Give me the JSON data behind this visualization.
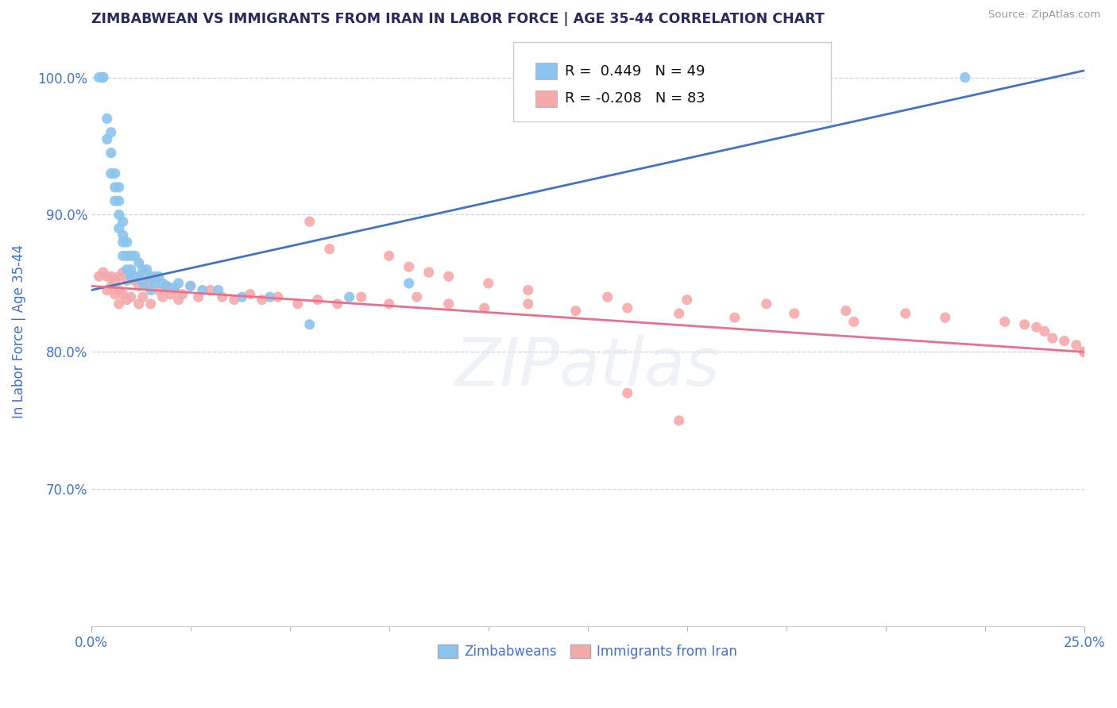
{
  "title": "ZIMBABWEAN VS IMMIGRANTS FROM IRAN IN LABOR FORCE | AGE 35-44 CORRELATION CHART",
  "source": "Source: ZipAtlas.com",
  "ylabel": "In Labor Force | Age 35-44",
  "x_min": 0.0,
  "x_max": 0.25,
  "y_min": 0.6,
  "y_max": 1.03,
  "y_ticks": [
    0.7,
    0.8,
    0.9,
    1.0
  ],
  "y_tick_labels": [
    "70.0%",
    "80.0%",
    "90.0%",
    "100.0%"
  ],
  "zimbabwean_R": 0.449,
  "zimbabwean_N": 49,
  "iran_R": -0.208,
  "iran_N": 83,
  "zimbabwean_color": "#8BC4EE",
  "iran_color": "#F5AAAA",
  "zimbabwean_line_color": "#4472C4",
  "iran_line_color": "#E8708A",
  "background_color": "#FFFFFF",
  "grid_color": "#C8D4E8",
  "title_color": "#2A2A5A",
  "label_color": "#4472C4",
  "watermark": "ZIPatlas",
  "zim_x": [
    0.002,
    0.003,
    0.003,
    0.004,
    0.004,
    0.005,
    0.005,
    0.005,
    0.006,
    0.006,
    0.006,
    0.007,
    0.007,
    0.007,
    0.007,
    0.008,
    0.008,
    0.008,
    0.008,
    0.009,
    0.009,
    0.009,
    0.01,
    0.01,
    0.01,
    0.011,
    0.011,
    0.012,
    0.012,
    0.013,
    0.013,
    0.014,
    0.015,
    0.015,
    0.016,
    0.017,
    0.018,
    0.019,
    0.021,
    0.022,
    0.025,
    0.028,
    0.032,
    0.038,
    0.045,
    0.055,
    0.065,
    0.08,
    0.22
  ],
  "zim_y": [
    1.0,
    1.0,
    1.0,
    0.97,
    0.955,
    0.96,
    0.945,
    0.93,
    0.93,
    0.92,
    0.91,
    0.92,
    0.91,
    0.9,
    0.89,
    0.895,
    0.885,
    0.88,
    0.87,
    0.88,
    0.87,
    0.86,
    0.87,
    0.86,
    0.855,
    0.87,
    0.855,
    0.865,
    0.855,
    0.86,
    0.85,
    0.86,
    0.855,
    0.845,
    0.85,
    0.855,
    0.85,
    0.848,
    0.847,
    0.85,
    0.848,
    0.845,
    0.845,
    0.84,
    0.84,
    0.82,
    0.84,
    0.85,
    1.0
  ],
  "iran_x": [
    0.002,
    0.003,
    0.004,
    0.004,
    0.005,
    0.005,
    0.006,
    0.006,
    0.007,
    0.007,
    0.007,
    0.008,
    0.008,
    0.009,
    0.009,
    0.01,
    0.01,
    0.011,
    0.012,
    0.012,
    0.013,
    0.013,
    0.014,
    0.015,
    0.015,
    0.016,
    0.017,
    0.018,
    0.019,
    0.02,
    0.021,
    0.022,
    0.023,
    0.025,
    0.027,
    0.03,
    0.033,
    0.036,
    0.04,
    0.043,
    0.047,
    0.052,
    0.057,
    0.062,
    0.068,
    0.075,
    0.082,
    0.09,
    0.099,
    0.11,
    0.122,
    0.135,
    0.148,
    0.162,
    0.177,
    0.192,
    0.135,
    0.148,
    0.055,
    0.06,
    0.075,
    0.08,
    0.085,
    0.09,
    0.1,
    0.11,
    0.13,
    0.15,
    0.17,
    0.19,
    0.205,
    0.215,
    0.23,
    0.235,
    0.238,
    0.24,
    0.242,
    0.245,
    0.248,
    0.25,
    0.25,
    0.25,
    0.25
  ],
  "iran_y": [
    0.855,
    0.858,
    0.855,
    0.845,
    0.855,
    0.848,
    0.852,
    0.842,
    0.855,
    0.845,
    0.835,
    0.858,
    0.842,
    0.852,
    0.838,
    0.855,
    0.84,
    0.852,
    0.848,
    0.835,
    0.855,
    0.84,
    0.848,
    0.852,
    0.835,
    0.855,
    0.845,
    0.84,
    0.848,
    0.842,
    0.845,
    0.838,
    0.842,
    0.848,
    0.84,
    0.845,
    0.84,
    0.838,
    0.842,
    0.838,
    0.84,
    0.835,
    0.838,
    0.835,
    0.84,
    0.835,
    0.84,
    0.835,
    0.832,
    0.835,
    0.83,
    0.832,
    0.828,
    0.825,
    0.828,
    0.822,
    0.77,
    0.75,
    0.895,
    0.875,
    0.87,
    0.862,
    0.858,
    0.855,
    0.85,
    0.845,
    0.84,
    0.838,
    0.835,
    0.83,
    0.828,
    0.825,
    0.822,
    0.82,
    0.818,
    0.815,
    0.81,
    0.808,
    0.805,
    0.8,
    0.8,
    0.8,
    0.8
  ],
  "zim_line_x0": 0.0,
  "zim_line_x1": 0.25,
  "zim_line_y0": 0.845,
  "zim_line_y1": 1.005,
  "iran_line_x0": 0.0,
  "iran_line_x1": 0.25,
  "iran_line_y0": 0.848,
  "iran_line_y1": 0.8
}
